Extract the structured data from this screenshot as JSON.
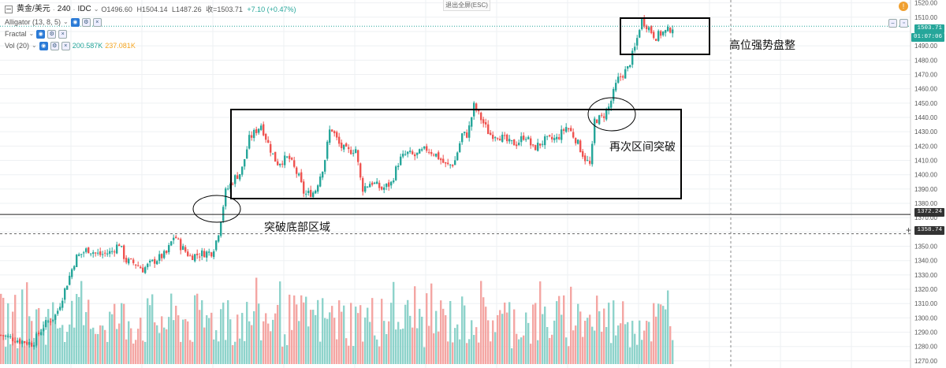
{
  "header": {
    "symbol": "黄金/美元",
    "interval": "240",
    "source": "IDC",
    "open": "O1496.60",
    "high": "H1504.14",
    "low": "L1487.26",
    "close": "收=1503.71",
    "change": "+7.10 (+0.47%)",
    "exit_fullscreen": "退出全屏(ESC)"
  },
  "indicators": [
    {
      "name": "Alligator (13, 8, 5)"
    },
    {
      "name": "Fractal"
    },
    {
      "name": "Vol (20)",
      "value1": "200.587K",
      "value2": "237.081K"
    }
  ],
  "price_badges": {
    "current": "1503.71",
    "countdown": "01:07:06",
    "line1": "1372.24",
    "line2": "1358.74"
  },
  "annotations": {
    "box_top": "高位强势盘整",
    "box_mid": "再次区间突破",
    "breakout": "突破底部区域"
  },
  "colors": {
    "up": "#26a69a",
    "down": "#ef5350",
    "vol_up": "#8ed3cb",
    "vol_down": "#f4a6a3",
    "current_line": "#26a69a",
    "grid": "#eef0f3"
  },
  "chart_data": {
    "type": "candlestick",
    "y_axis": {
      "min": 1265,
      "max": 1522,
      "ticks": [
        1520,
        1510,
        1500,
        1490,
        1480,
        1470,
        1460,
        1450,
        1440,
        1430,
        1420,
        1410,
        1400,
        1390,
        1380,
        1370,
        1360,
        1350,
        1340,
        1330,
        1320,
        1310,
        1300,
        1290,
        1280,
        1270
      ]
    },
    "horizontal_lines": [
      1372.24,
      1358.74
    ],
    "current_price": 1503.71,
    "anchor_path": [
      [
        0,
        1288
      ],
      [
        25,
        1284
      ],
      [
        40,
        1282
      ],
      [
        55,
        1295
      ],
      [
        70,
        1302
      ],
      [
        80,
        1318
      ],
      [
        95,
        1342
      ],
      [
        110,
        1348
      ],
      [
        125,
        1344
      ],
      [
        140,
        1346
      ],
      [
        150,
        1352
      ],
      [
        158,
        1340
      ],
      [
        170,
        1338
      ],
      [
        180,
        1334
      ],
      [
        195,
        1340
      ],
      [
        210,
        1345
      ],
      [
        220,
        1358
      ],
      [
        228,
        1350
      ],
      [
        240,
        1343
      ],
      [
        255,
        1345
      ],
      [
        268,
        1346
      ],
      [
        275,
        1357
      ],
      [
        285,
        1388
      ],
      [
        297,
        1398
      ],
      [
        305,
        1402
      ],
      [
        315,
        1425
      ],
      [
        330,
        1435
      ],
      [
        340,
        1420
      ],
      [
        350,
        1408
      ],
      [
        365,
        1412
      ],
      [
        378,
        1398
      ],
      [
        385,
        1386
      ],
      [
        398,
        1388
      ],
      [
        410,
        1408
      ],
      [
        418,
        1434
      ],
      [
        430,
        1420
      ],
      [
        440,
        1416
      ],
      [
        450,
        1418
      ],
      [
        458,
        1390
      ],
      [
        470,
        1395
      ],
      [
        483,
        1390
      ],
      [
        495,
        1394
      ],
      [
        505,
        1410
      ],
      [
        515,
        1415
      ],
      [
        525,
        1413
      ],
      [
        540,
        1418
      ],
      [
        552,
        1414
      ],
      [
        565,
        1406
      ],
      [
        575,
        1408
      ],
      [
        585,
        1428
      ],
      [
        592,
        1428
      ],
      [
        600,
        1448
      ],
      [
        610,
        1438
      ],
      [
        620,
        1428
      ],
      [
        630,
        1428
      ],
      [
        645,
        1422
      ],
      [
        655,
        1422
      ],
      [
        665,
        1428
      ],
      [
        675,
        1418
      ],
      [
        690,
        1424
      ],
      [
        705,
        1425
      ],
      [
        718,
        1434
      ],
      [
        730,
        1424
      ],
      [
        740,
        1412
      ],
      [
        748,
        1406
      ],
      [
        753,
        1438
      ],
      [
        763,
        1440
      ],
      [
        772,
        1448
      ],
      [
        782,
        1466
      ],
      [
        795,
        1474
      ],
      [
        805,
        1490
      ],
      [
        812,
        1508
      ],
      [
        820,
        1504
      ],
      [
        830,
        1496
      ],
      [
        838,
        1499
      ],
      [
        845,
        1500
      ],
      [
        853,
        1503.71
      ]
    ]
  }
}
